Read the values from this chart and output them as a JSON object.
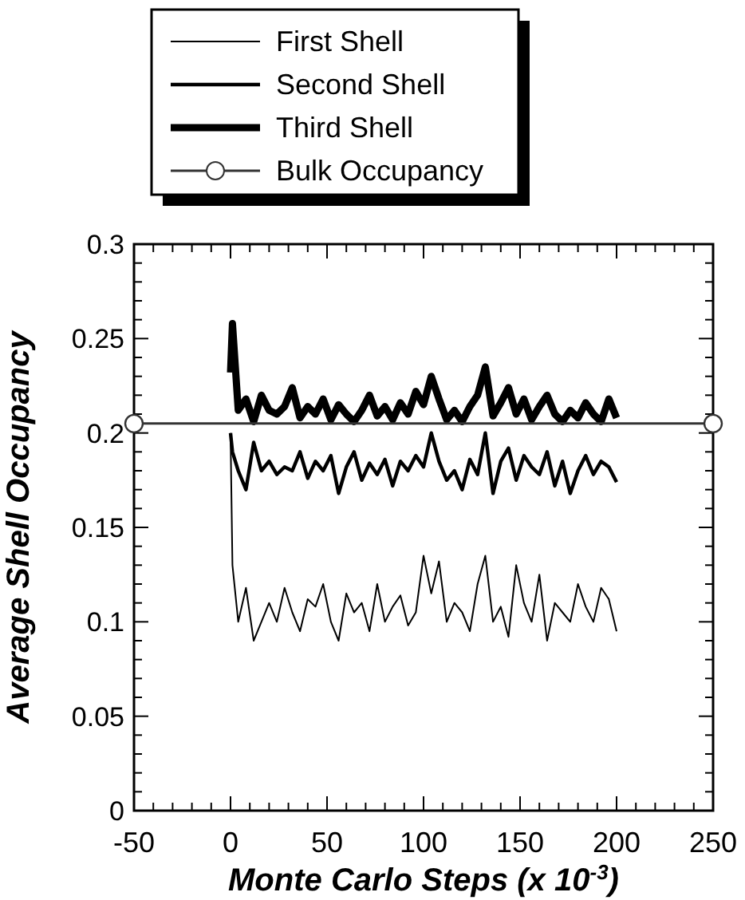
{
  "chart_data": {
    "type": "line",
    "xlabel": "Monte Carlo Steps (x 10$^{-3}$)",
    "ylabel": "Average Shell Occupancy",
    "xlim": [
      -50,
      250
    ],
    "ylim": [
      0,
      0.3
    ],
    "xticks": [
      -50,
      {
        "value": -40,
        "label": null
      },
      {
        "value": -30,
        "label": null
      },
      {
        "value": -20,
        "label": null
      },
      {
        "value": -10,
        "label": null
      },
      0,
      {
        "value": 10,
        "label": null
      },
      {
        "value": 20,
        "label": null
      },
      {
        "value": 30,
        "label": null
      },
      {
        "value": 40,
        "label": null
      },
      50,
      {
        "value": 60,
        "label": null
      },
      {
        "value": 70,
        "label": null
      },
      {
        "value": 80,
        "label": null
      },
      {
        "value": 90,
        "label": null
      },
      100,
      {
        "value": 110,
        "label": null
      },
      {
        "value": 120,
        "label": null
      },
      {
        "value": 130,
        "label": null
      },
      {
        "value": 140,
        "label": null
      },
      150,
      {
        "value": 160,
        "label": null
      },
      {
        "value": 170,
        "label": null
      },
      {
        "value": 180,
        "label": null
      },
      {
        "value": 190,
        "label": null
      },
      200,
      {
        "value": 210,
        "label": null
      },
      {
        "value": 220,
        "label": null
      },
      {
        "value": 230,
        "label": null
      },
      {
        "value": 240,
        "label": null
      },
      250
    ],
    "yticks": [
      0,
      {
        "value": 0.01,
        "label": null
      },
      {
        "value": 0.02,
        "label": null
      },
      {
        "value": 0.03,
        "label": null
      },
      {
        "value": 0.04,
        "label": null
      },
      0.05,
      {
        "value": 0.06,
        "label": null
      },
      {
        "value": 0.07,
        "label": null
      },
      {
        "value": 0.08,
        "label": null
      },
      {
        "value": 0.09,
        "label": null
      },
      0.1,
      {
        "value": 0.11,
        "label": null
      },
      {
        "value": 0.12,
        "label": null
      },
      {
        "value": 0.13,
        "label": null
      },
      {
        "value": 0.14,
        "label": null
      },
      0.15,
      {
        "value": 0.16,
        "label": null
      },
      {
        "value": 0.17,
        "label": null
      },
      {
        "value": 0.18,
        "label": null
      },
      {
        "value": 0.19,
        "label": null
      },
      0.2,
      {
        "value": 0.21,
        "label": null
      },
      {
        "value": 0.22,
        "label": null
      },
      {
        "value": 0.23,
        "label": null
      },
      {
        "value": 0.24,
        "label": null
      },
      0.25,
      {
        "value": 0.26,
        "label": null
      },
      {
        "value": 0.27,
        "label": null
      },
      {
        "value": 0.28,
        "label": null
      },
      {
        "value": 0.29,
        "label": null
      },
      0.3
    ],
    "x": [
      0,
      1,
      4,
      8,
      12,
      16,
      20,
      24,
      28,
      32,
      36,
      40,
      44,
      48,
      52,
      56,
      60,
      64,
      68,
      72,
      76,
      80,
      84,
      88,
      92,
      96,
      100,
      104,
      108,
      112,
      116,
      120,
      124,
      128,
      132,
      136,
      140,
      144,
      148,
      152,
      156,
      160,
      164,
      168,
      172,
      176,
      180,
      184,
      188,
      192,
      196,
      200
    ],
    "grid": false,
    "legend": "top",
    "line_style": "solid",
    "series": [
      {
        "name": "First Shell",
        "color": "#000000",
        "values": [
          0.2,
          0.13,
          0.1,
          0.118,
          0.09,
          0.1,
          0.11,
          0.1,
          0.118,
          0.105,
          0.095,
          0.112,
          0.108,
          0.12,
          0.1,
          0.09,
          0.115,
          0.105,
          0.11,
          0.095,
          0.12,
          0.1,
          0.108,
          0.114,
          0.098,
          0.105,
          0.135,
          0.115,
          0.132,
          0.1,
          0.11,
          0.105,
          0.095,
          0.12,
          0.135,
          0.1,
          0.108,
          0.092,
          0.13,
          0.11,
          0.1,
          0.125,
          0.09,
          0.11,
          0.105,
          0.1,
          0.12,
          0.108,
          0.1,
          0.118,
          0.112,
          0.095
        ]
      },
      {
        "name": "Second Shell",
        "color": "#000000",
        "values": [
          0.2,
          0.19,
          0.18,
          0.17,
          0.195,
          0.18,
          0.185,
          0.178,
          0.182,
          0.18,
          0.19,
          0.176,
          0.185,
          0.18,
          0.188,
          0.168,
          0.182,
          0.19,
          0.175,
          0.184,
          0.178,
          0.186,
          0.172,
          0.185,
          0.18,
          0.188,
          0.182,
          0.2,
          0.185,
          0.175,
          0.18,
          0.17,
          0.186,
          0.178,
          0.2,
          0.168,
          0.185,
          0.192,
          0.175,
          0.188,
          0.182,
          0.178,
          0.19,
          0.172,
          0.185,
          0.168,
          0.18,
          0.188,
          0.178,
          0.185,
          0.182,
          0.174
        ]
      },
      {
        "name": "Third Shell",
        "color": "#000000",
        "values": [
          0.232,
          0.258,
          0.212,
          0.218,
          0.206,
          0.22,
          0.212,
          0.21,
          0.214,
          0.224,
          0.208,
          0.214,
          0.21,
          0.218,
          0.207,
          0.215,
          0.21,
          0.206,
          0.212,
          0.22,
          0.209,
          0.214,
          0.207,
          0.216,
          0.21,
          0.222,
          0.215,
          0.23,
          0.218,
          0.207,
          0.212,
          0.206,
          0.214,
          0.22,
          0.235,
          0.209,
          0.216,
          0.224,
          0.21,
          0.218,
          0.207,
          0.214,
          0.22,
          0.21,
          0.206,
          0.212,
          0.208,
          0.216,
          0.21,
          0.206,
          0.218,
          0.208
        ]
      },
      {
        "name": "Bulk Occupancy",
        "color": "#333333",
        "marker": "circle",
        "x": [
          -50,
          250
        ],
        "values": [
          0.205,
          0.205
        ]
      }
    ]
  }
}
